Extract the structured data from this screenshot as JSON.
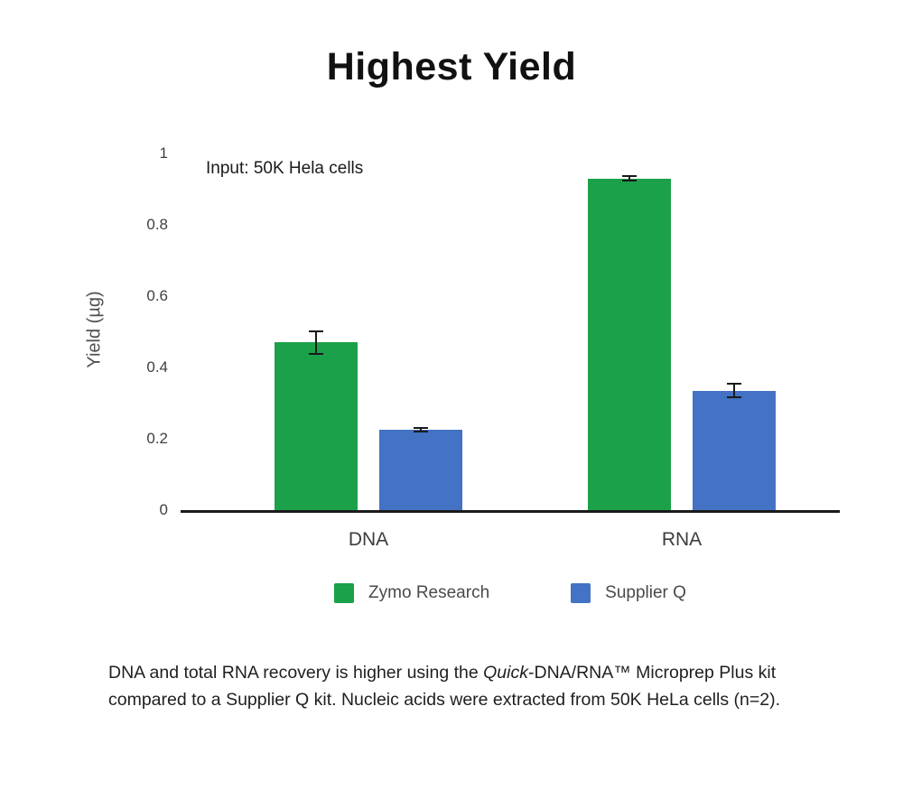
{
  "page": {
    "background": "#ffffff"
  },
  "title": "Highest Yield",
  "chart": {
    "annotation": "Input: 50K Hela cells",
    "y_axis_label": "Yield (µg)"
  },
  "chart_data": {
    "type": "bar",
    "title": "Highest Yield",
    "categories": [
      "DNA",
      "RNA"
    ],
    "series": [
      {
        "name": "Zymo Research",
        "color": "#1BA14A",
        "values": [
          0.47,
          0.93
        ],
        "errors": [
          0.035,
          0.008
        ]
      },
      {
        "name": "Supplier Q",
        "color": "#4472C4",
        "values": [
          0.225,
          0.335
        ],
        "errors": [
          0.007,
          0.022
        ]
      }
    ],
    "xlabel": "",
    "ylabel": "Yield (µg)",
    "ylim": [
      0,
      1
    ],
    "yticks": [
      0,
      0.2,
      0.4,
      0.6,
      0.8,
      1
    ],
    "annotation": "Input: 50K Hela cells",
    "legend_position": "bottom",
    "grid": false,
    "error_bars": true
  },
  "caption": {
    "pre": "DNA and total RNA recovery is higher using the ",
    "italic": "Quick",
    "post": "-DNA/RNA™ Microprep Plus kit compared to a Supplier Q kit. Nucleic acids were extracted from 50K HeLa cells (n=2)."
  }
}
